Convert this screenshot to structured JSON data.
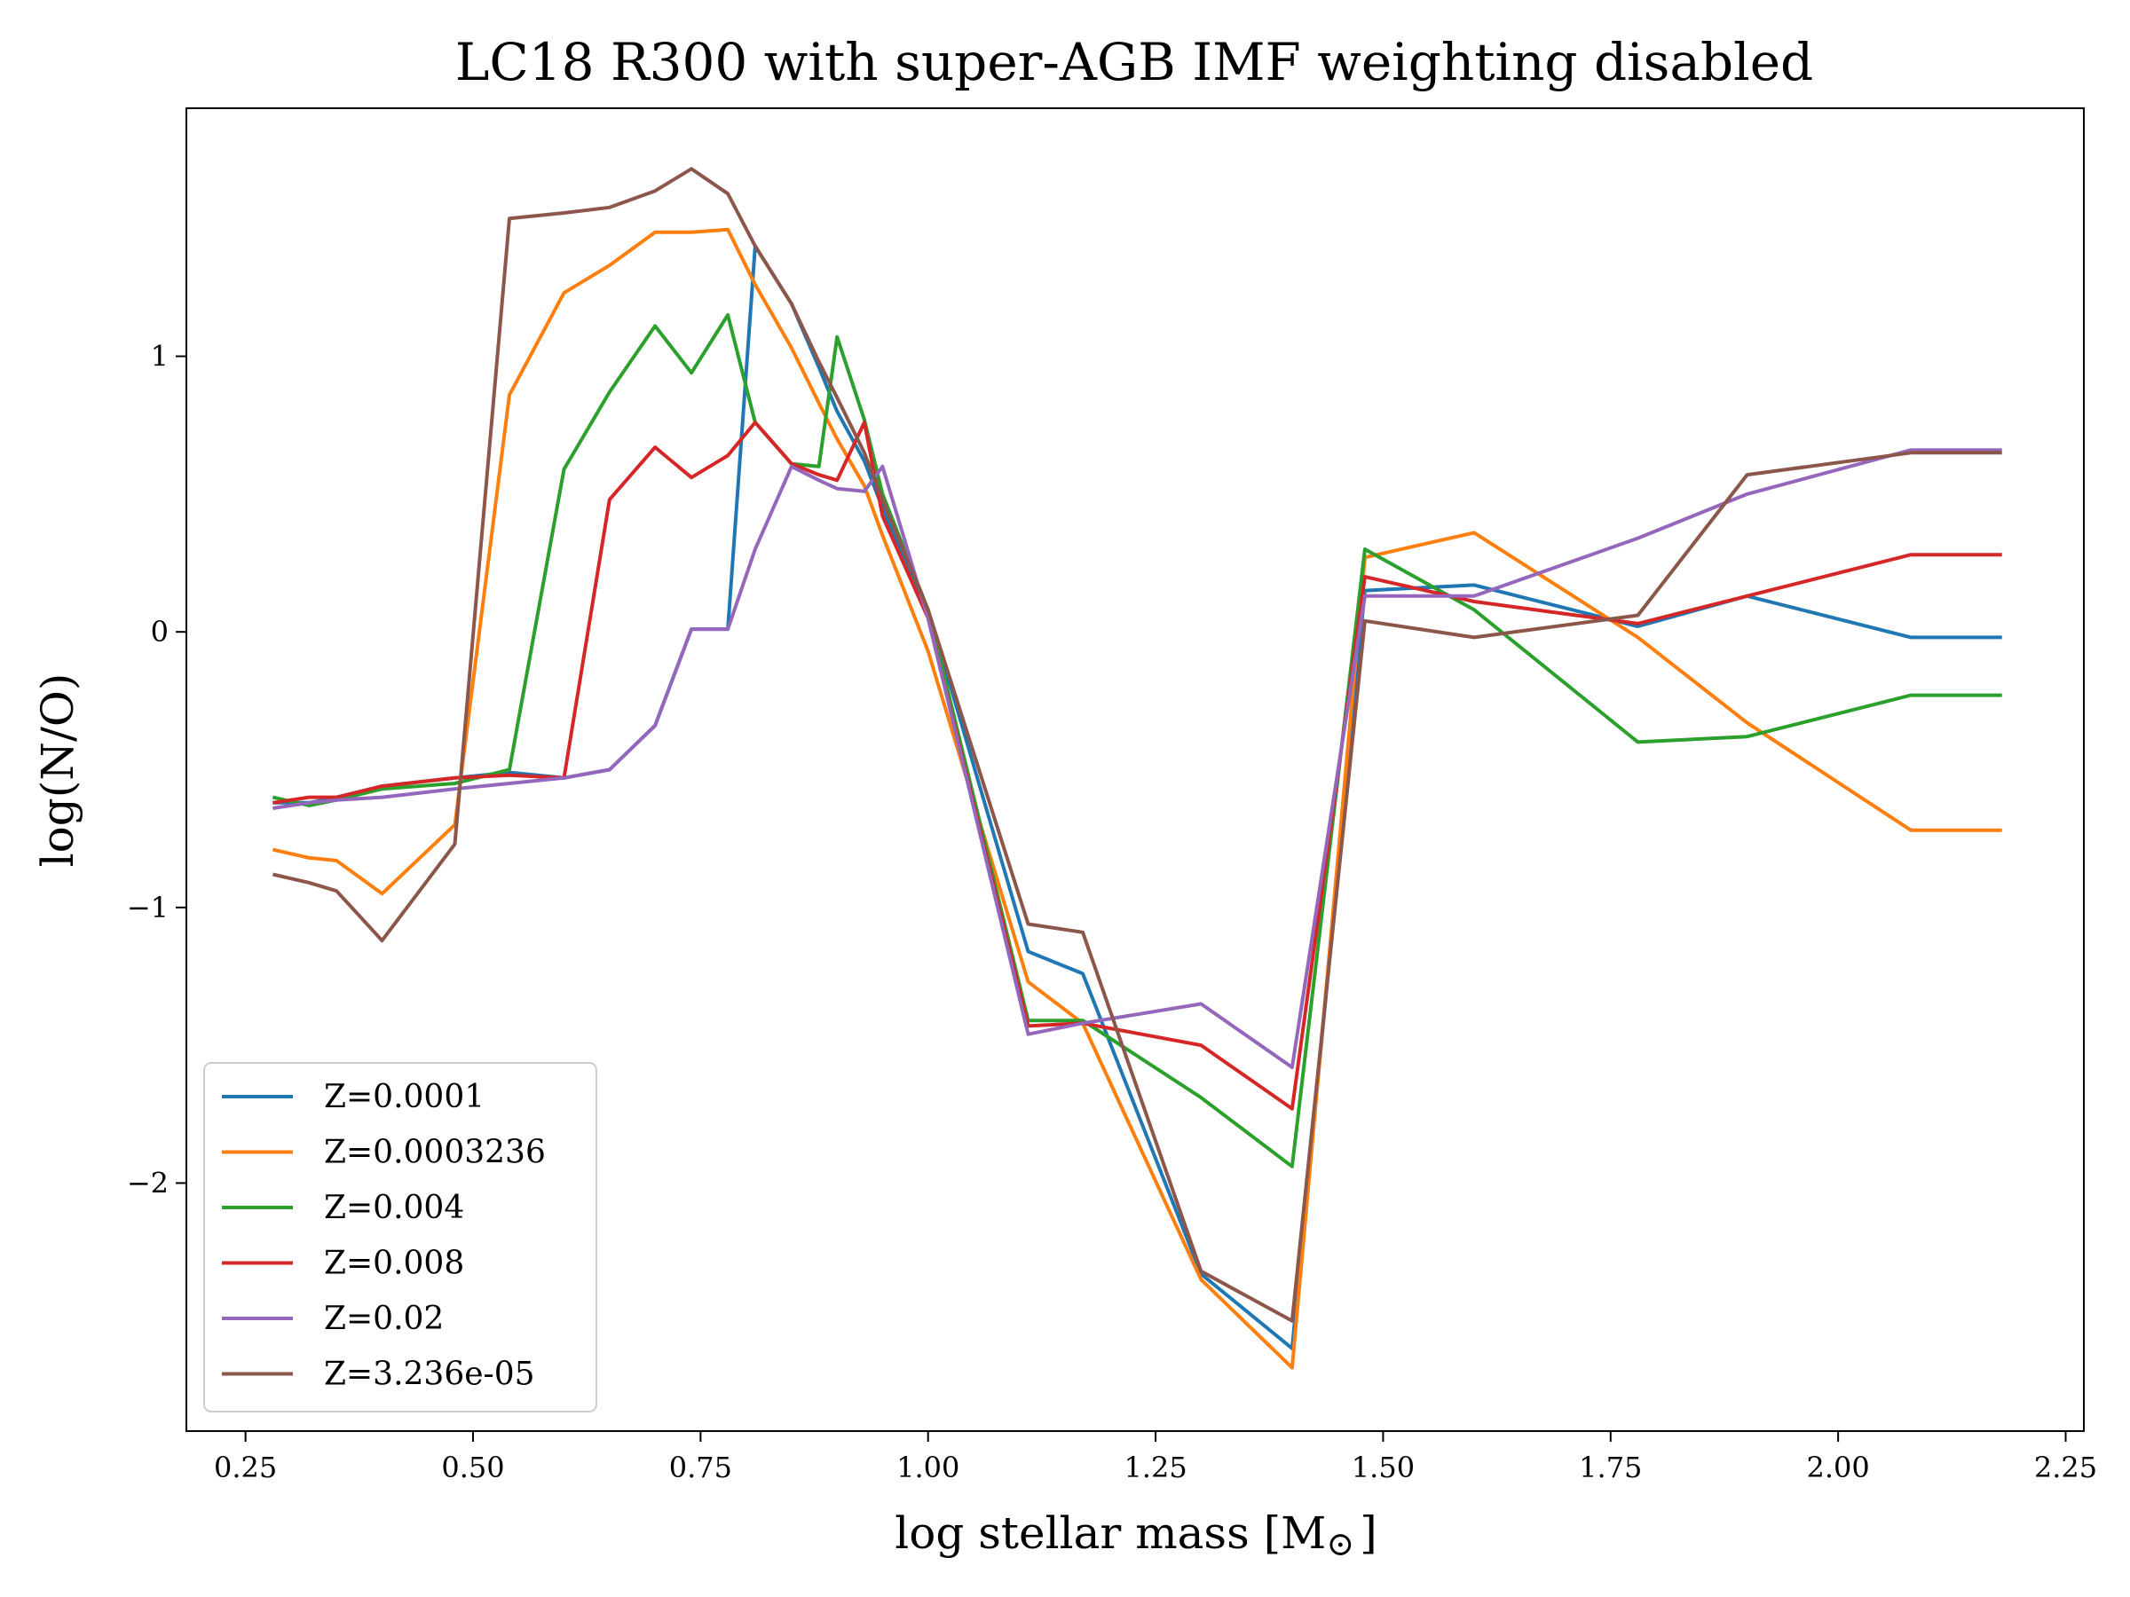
{
  "chart_data": {
    "type": "line",
    "title": "LC18 R300 with super-AGB IMF weighting disabled",
    "xlabel": "log stellar mass [M",
    "xlabel_symbol": "⊙",
    "xlabel_close": "]",
    "ylabel": "log(N/O)",
    "xlim": [
      0.185,
      2.27
    ],
    "ylim": [
      -2.9,
      1.9
    ],
    "xticks": [
      0.25,
      0.5,
      0.75,
      1.0,
      1.25,
      1.5,
      1.75,
      2.0,
      2.25
    ],
    "xtick_labels": [
      "0.25",
      "0.50",
      "0.75",
      "1.00",
      "1.25",
      "1.50",
      "1.75",
      "2.00",
      "2.25"
    ],
    "yticks": [
      1,
      0,
      -1,
      -2
    ],
    "ytick_labels": [
      "1",
      "0",
      "−1",
      "−2"
    ],
    "grid": false,
    "legend_position": "bottom-left",
    "series": [
      {
        "name": "Z=0.0001",
        "color": "#1f77b4",
        "x": [
          0.28,
          0.32,
          0.35,
          0.4,
          0.48,
          0.54,
          0.6,
          0.65,
          0.7,
          0.74,
          0.78,
          0.81,
          0.85,
          0.88,
          0.9,
          0.93,
          0.95,
          1.0,
          1.11,
          1.17,
          1.3,
          1.4,
          1.48,
          1.6,
          1.78,
          1.9,
          2.08,
          2.18
        ],
        "y": [
          -0.62,
          -0.62,
          -0.6,
          -0.56,
          -0.53,
          -0.51,
          -0.53,
          -0.5,
          -0.34,
          0.01,
          0.01,
          1.4,
          1.19,
          0.96,
          0.8,
          0.62,
          0.45,
          0.08,
          -1.16,
          -1.24,
          -2.33,
          -2.6,
          0.15,
          0.17,
          0.02,
          0.13,
          -0.02,
          -0.02
        ]
      },
      {
        "name": "Z=0.0003236",
        "color": "#ff7f0e",
        "x": [
          0.28,
          0.32,
          0.35,
          0.4,
          0.48,
          0.54,
          0.6,
          0.65,
          0.7,
          0.74,
          0.78,
          0.81,
          0.85,
          0.88,
          0.9,
          0.93,
          0.95,
          1.0,
          1.11,
          1.17,
          1.3,
          1.4,
          1.48,
          1.6,
          1.78,
          1.9,
          2.08,
          2.18
        ],
        "y": [
          -0.79,
          -0.82,
          -0.83,
          -0.95,
          -0.7,
          0.86,
          1.23,
          1.33,
          1.45,
          1.45,
          1.46,
          1.26,
          1.03,
          0.83,
          0.7,
          0.53,
          0.35,
          -0.07,
          -1.27,
          -1.42,
          -2.35,
          -2.67,
          0.27,
          0.36,
          -0.02,
          -0.33,
          -0.72,
          -0.72
        ]
      },
      {
        "name": "Z=0.004",
        "color": "#2ca02c",
        "x": [
          0.28,
          0.32,
          0.35,
          0.4,
          0.48,
          0.54,
          0.6,
          0.65,
          0.7,
          0.74,
          0.78,
          0.81,
          0.85,
          0.88,
          0.9,
          0.93,
          0.95,
          1.0,
          1.11,
          1.17,
          1.3,
          1.4,
          1.48,
          1.6,
          1.78,
          1.9,
          2.08,
          2.18
        ],
        "y": [
          -0.6,
          -0.63,
          -0.61,
          -0.57,
          -0.55,
          -0.5,
          0.59,
          0.87,
          1.11,
          0.94,
          1.15,
          0.76,
          0.61,
          0.6,
          1.07,
          0.77,
          0.5,
          0.08,
          -1.41,
          -1.41,
          -1.69,
          -1.94,
          0.3,
          0.08,
          -0.4,
          -0.38,
          -0.23,
          -0.23
        ]
      },
      {
        "name": "Z=0.008",
        "color": "#d62728",
        "x": [
          0.28,
          0.32,
          0.35,
          0.4,
          0.48,
          0.54,
          0.6,
          0.65,
          0.7,
          0.74,
          0.78,
          0.81,
          0.85,
          0.88,
          0.9,
          0.93,
          0.95,
          1.0,
          1.11,
          1.17,
          1.3,
          1.4,
          1.48,
          1.6,
          1.78,
          1.9,
          2.08,
          2.18
        ],
        "y": [
          -0.62,
          -0.6,
          -0.6,
          -0.56,
          -0.53,
          -0.52,
          -0.53,
          0.48,
          0.67,
          0.56,
          0.64,
          0.76,
          0.61,
          0.57,
          0.55,
          0.76,
          0.42,
          0.05,
          -1.43,
          -1.42,
          -1.5,
          -1.73,
          0.2,
          0.11,
          0.03,
          0.13,
          0.28,
          0.28
        ]
      },
      {
        "name": "Z=0.02",
        "color": "#9467bd",
        "x": [
          0.28,
          0.32,
          0.35,
          0.4,
          0.48,
          0.54,
          0.6,
          0.65,
          0.7,
          0.74,
          0.78,
          0.81,
          0.85,
          0.88,
          0.9,
          0.93,
          0.95,
          1.0,
          1.11,
          1.17,
          1.3,
          1.4,
          1.48,
          1.6,
          1.78,
          1.9,
          2.08,
          2.18
        ],
        "y": [
          -0.64,
          -0.62,
          -0.61,
          -0.6,
          -0.57,
          -0.55,
          -0.53,
          -0.5,
          -0.34,
          0.01,
          0.01,
          0.3,
          0.6,
          0.55,
          0.52,
          0.51,
          0.6,
          0.05,
          -1.46,
          -1.42,
          -1.35,
          -1.58,
          0.13,
          0.13,
          0.34,
          0.5,
          0.66,
          0.66
        ]
      },
      {
        "name": "Z=3.236e-05",
        "color": "#8c564b",
        "x": [
          0.28,
          0.32,
          0.35,
          0.4,
          0.48,
          0.54,
          0.6,
          0.65,
          0.7,
          0.74,
          0.78,
          0.81,
          0.85,
          0.88,
          0.9,
          0.93,
          0.95,
          1.0,
          1.11,
          1.17,
          1.3,
          1.4,
          1.48,
          1.6,
          1.78,
          1.9,
          2.08,
          2.18
        ],
        "y": [
          -0.88,
          -0.91,
          -0.94,
          -1.12,
          -0.77,
          1.5,
          1.52,
          1.54,
          1.6,
          1.68,
          1.59,
          1.4,
          1.19,
          0.98,
          0.85,
          0.65,
          0.48,
          0.08,
          -1.06,
          -1.09,
          -2.32,
          -2.5,
          0.04,
          -0.02,
          0.06,
          0.57,
          0.65,
          0.65
        ]
      }
    ]
  }
}
